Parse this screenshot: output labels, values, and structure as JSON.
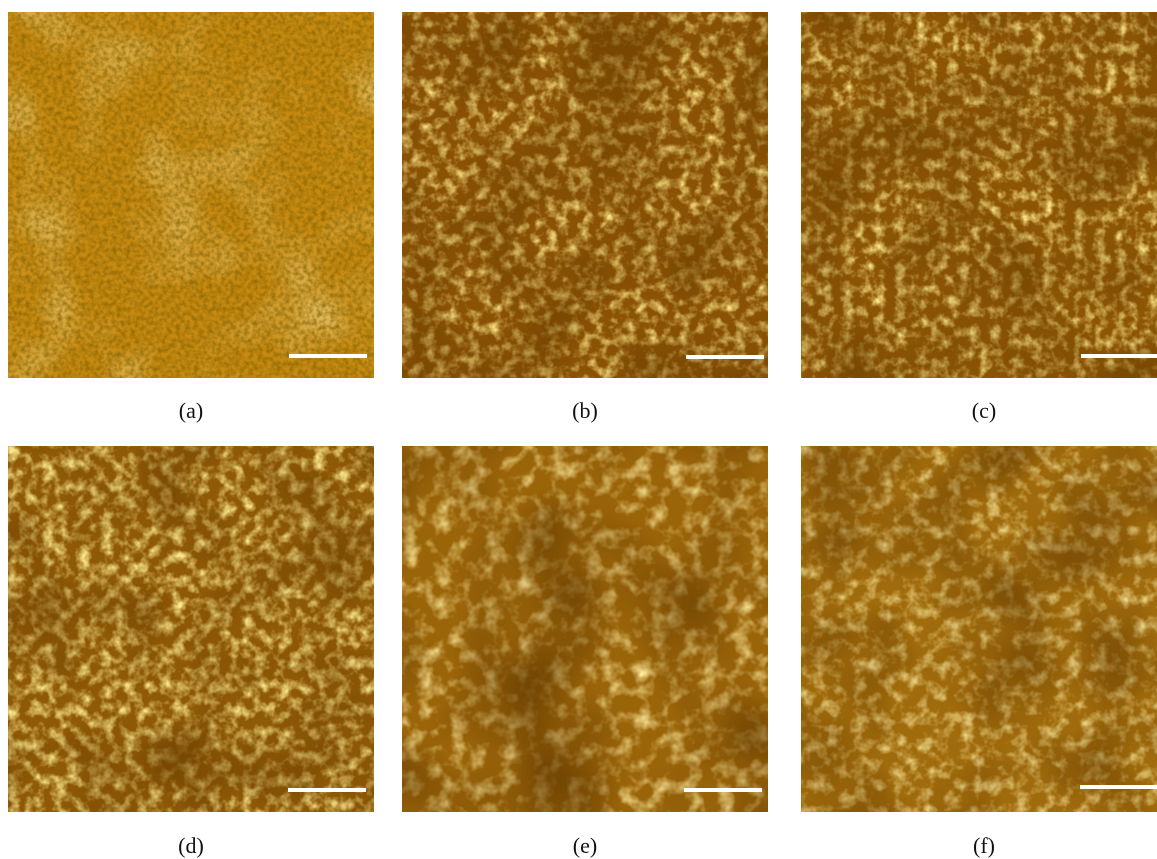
{
  "figure": {
    "panels": [
      {
        "caption": "(a)",
        "texture": "fine-dotted-honeycomb",
        "base_color": "#c78a11"
      },
      {
        "caption": "(b)",
        "texture": "wormlike-granular",
        "base_color": "#8a5205"
      },
      {
        "caption": "(c)",
        "texture": "wormlike-granular",
        "base_color": "#8d5606"
      },
      {
        "caption": "(d)",
        "texture": "wormlike-granular",
        "base_color": "#8f5a07"
      },
      {
        "caption": "(e)",
        "texture": "coarse-granular",
        "base_color": "#9a6409"
      },
      {
        "caption": "(f)",
        "texture": "coarse-granular",
        "base_color": "#a06b0c"
      }
    ],
    "scalebar_color": "#ffffff"
  }
}
